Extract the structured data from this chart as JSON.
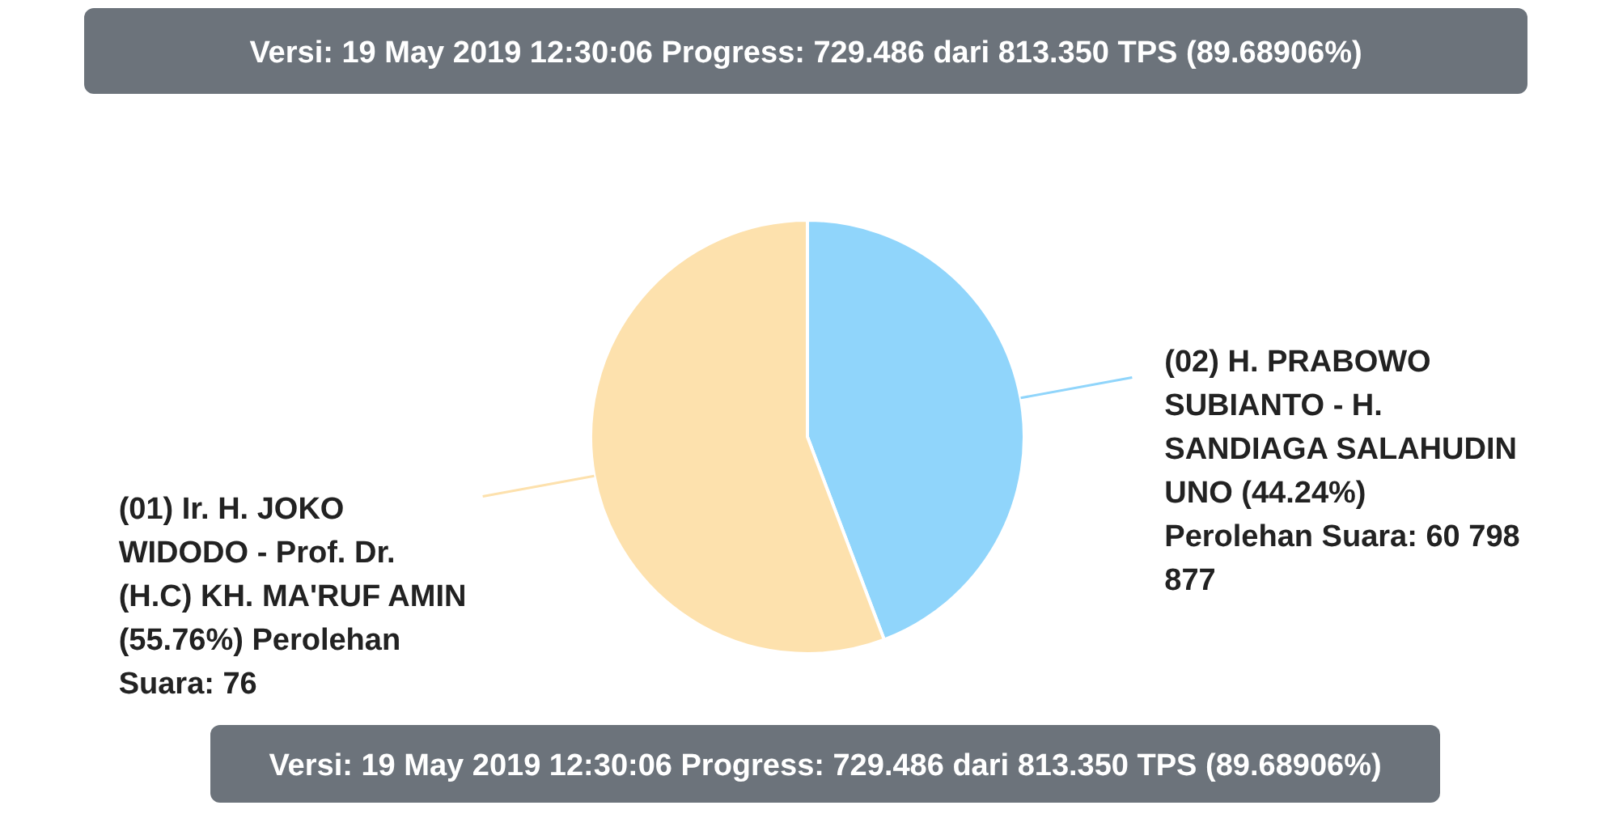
{
  "chart_data": {
    "type": "pie",
    "categories": [
      "(01) Ir. H. JOKO WIDODO - Prof. Dr. (H.C) KH. MA'RUF AMIN",
      "(02) H. PRABOWO SUBIANTO - H. SANDIAGA SALAHUDIN UNO"
    ],
    "values": [
      55.76,
      44.24
    ],
    "colors": [
      "#fde1ad",
      "#90d5fb"
    ],
    "value_labels": [
      "(55.76%) Perolehan Suara: 76",
      "(44.24%) Perolehan Suara: 60 798 877"
    ],
    "annotations": [
      "Versi: 19 May 2019 12:30:06 Progress: 729.486 dari 813.350 TPS (89.68906%)",
      "Versi: 19 May 2019 12:30:06 Progress: 729.486 dari 813.350 TPS (89.68906%)"
    ]
  }
}
